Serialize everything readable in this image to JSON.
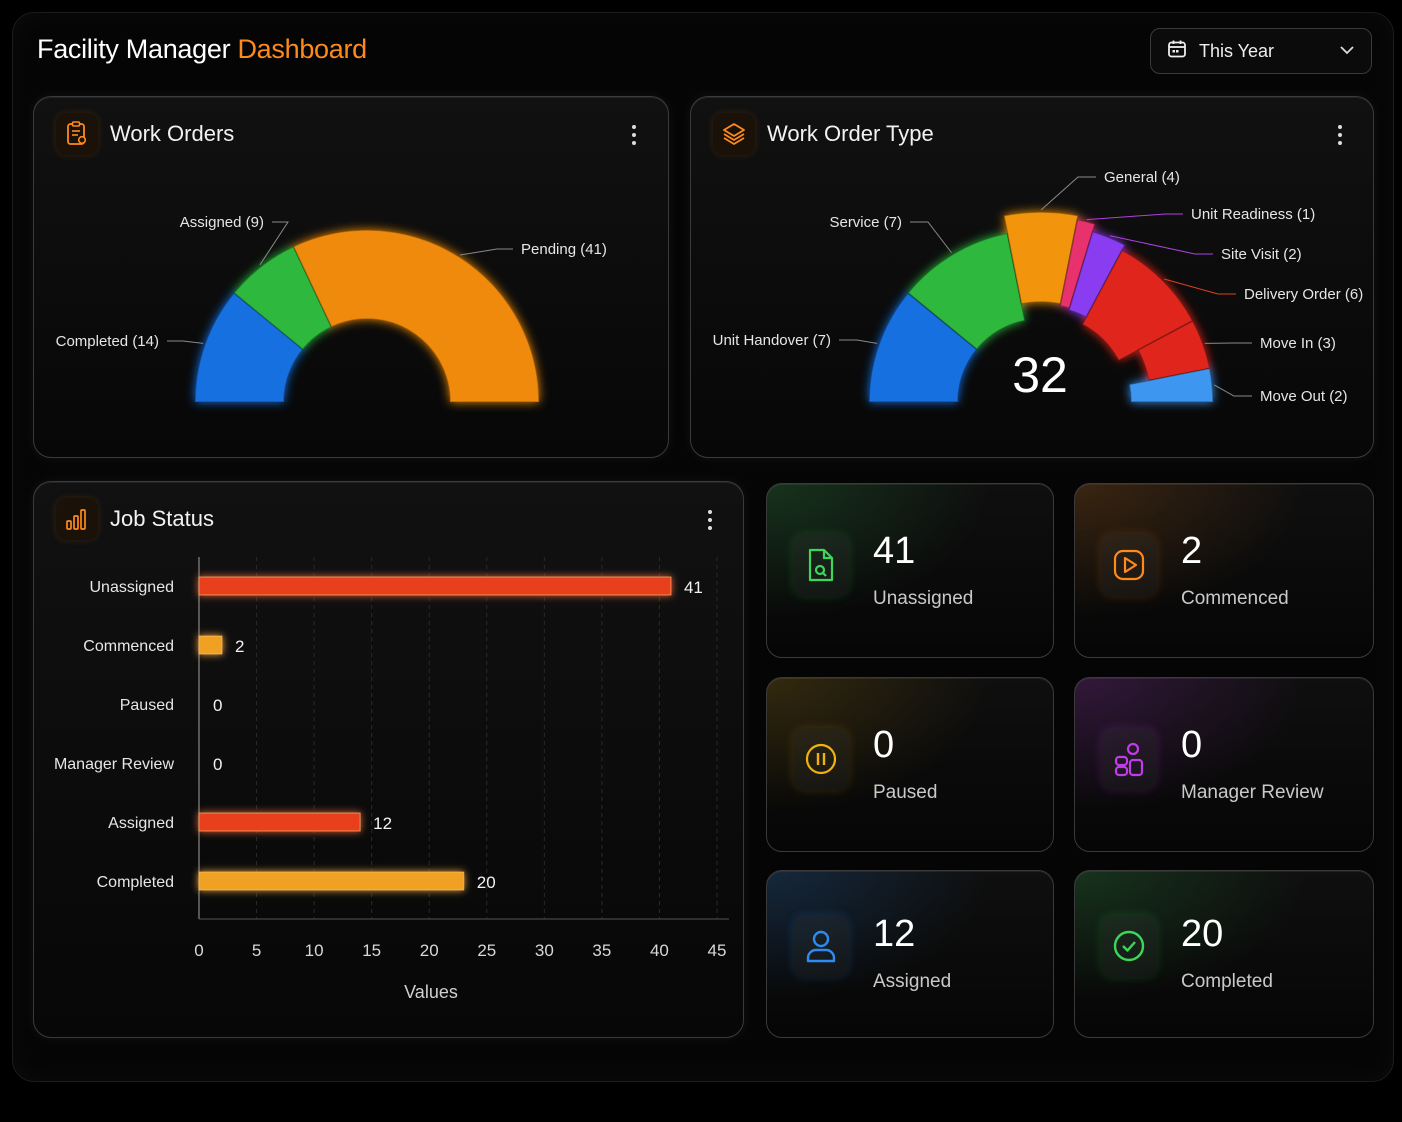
{
  "header": {
    "title_main": "Facility Manager",
    "title_accent": "Dashboard",
    "period": "This Year"
  },
  "work_orders": {
    "title": "Work Orders",
    "chart_data": {
      "type": "pie",
      "shape": "half-donut",
      "slices": [
        {
          "label": "Completed (14)",
          "value": 14,
          "color": "#1670e0"
        },
        {
          "label": "Assigned (9)",
          "value": 9,
          "color": "#2db83d"
        },
        {
          "label": "Pending (41)",
          "value": 41,
          "color": "#f08a0a"
        }
      ]
    }
  },
  "work_order_type": {
    "title": "Work Order Type",
    "total": "32",
    "chart_data": {
      "type": "pie",
      "shape": "half-donut",
      "slices": [
        {
          "label": "Unit Handover (7)",
          "value": 7,
          "color": "#1670e0"
        },
        {
          "label": "Service (7)",
          "value": 7,
          "color": "#2db83d"
        },
        {
          "label": "General (4)",
          "value": 4,
          "color": "#f2950c"
        },
        {
          "label": "Unit Readiness (1)",
          "value": 1,
          "color": "#e8306e"
        },
        {
          "label": "Site Visit (2)",
          "value": 2,
          "color": "#8a3cf0"
        },
        {
          "label": "Delivery Order (6)",
          "value": 6,
          "color": "#e0281e"
        },
        {
          "label": "Move In (3)",
          "value": 3,
          "color": "#e0281e"
        },
        {
          "label": "Move Out (2)",
          "value": 2,
          "color": "#3d97f0"
        }
      ]
    }
  },
  "job_status": {
    "title": "Job Status",
    "chart_data": {
      "type": "bar",
      "orientation": "horizontal",
      "categories": [
        "Unassigned",
        "Commenced",
        "Paused",
        "Manager Review",
        "Assigned",
        "Completed"
      ],
      "values": [
        41,
        2,
        0,
        0,
        12,
        20
      ],
      "bar_lengths_shown": [
        41,
        2,
        0,
        0,
        14,
        23
      ],
      "colors": [
        "#e8401e",
        "#f0a020",
        "#f0a020",
        "#f0a020",
        "#e8401e",
        "#f0a020"
      ],
      "xlabel": "Values",
      "xlim": [
        0,
        45
      ],
      "xticks": [
        "0",
        "5",
        "10",
        "15",
        "20",
        "25",
        "30",
        "35",
        "40",
        "45"
      ],
      "grid": "vertical dashed"
    }
  },
  "stats": [
    {
      "value": "41",
      "label": "Unassigned",
      "icon": "file-icon",
      "color": "#3dd65a"
    },
    {
      "value": "2",
      "label": "Commenced",
      "icon": "play-icon",
      "color": "#ff8a1c"
    },
    {
      "value": "0",
      "label": "Paused",
      "icon": "pause-icon",
      "color": "#f2b20c"
    },
    {
      "value": "0",
      "label": "Manager Review",
      "icon": "shapes-icon",
      "color": "#c03ce8"
    },
    {
      "value": "12",
      "label": "Assigned",
      "icon": "user-icon",
      "color": "#2e8cf0"
    },
    {
      "value": "20",
      "label": "Completed",
      "icon": "check-circle-icon",
      "color": "#3dd65a"
    }
  ]
}
